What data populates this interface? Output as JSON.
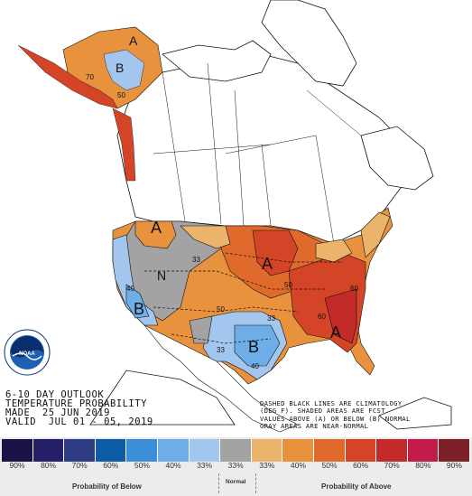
{
  "outlook": {
    "line1": "6-10 DAY OUTLOOK",
    "line2": "TEMPERATURE PROBABILITY",
    "line3": "MADE  25 JUN 2019",
    "line4": "VALID  JUL 01 - 05, 2019"
  },
  "note": {
    "line1": "DASHED BLACK LINES ARE CLIMATOLOGY",
    "line2": "(DEG F). SHADED AREAS ARE FCST",
    "line3": "VALUES ABOVE (A) OR BELOW (B) NORMAL",
    "line4": "GRAY AREAS ARE NEAR-NORMAL"
  },
  "map_labels": {
    "above": "A",
    "below": "B",
    "near_normal": "N",
    "p33": "33",
    "p40": "40",
    "p50": "50",
    "p60": "60",
    "p70": "70"
  },
  "legend": {
    "below_title": "Probability of Below",
    "normal_title": "Normal",
    "above_title": "Probability of Above",
    "swatches": [
      {
        "label": "90%",
        "color": "#1a1446"
      },
      {
        "label": "80%",
        "color": "#241f66"
      },
      {
        "label": "70%",
        "color": "#2e3c86"
      },
      {
        "label": "60%",
        "color": "#0f5ca6"
      },
      {
        "label": "50%",
        "color": "#3b8fd8"
      },
      {
        "label": "40%",
        "color": "#6eaee8"
      },
      {
        "label": "33%",
        "color": "#a2c6ee"
      },
      {
        "label": "33%",
        "color": "#a3a3a3"
      },
      {
        "label": "33%",
        "color": "#eab46c"
      },
      {
        "label": "40%",
        "color": "#e8923e"
      },
      {
        "label": "50%",
        "color": "#e06a2c"
      },
      {
        "label": "60%",
        "color": "#d34526"
      },
      {
        "label": "70%",
        "color": "#c32a2a"
      },
      {
        "label": "80%",
        "color": "#c41c4a"
      },
      {
        "label": "90%",
        "color": "#7d2028"
      }
    ]
  },
  "logo": {
    "text": "NOAA"
  }
}
